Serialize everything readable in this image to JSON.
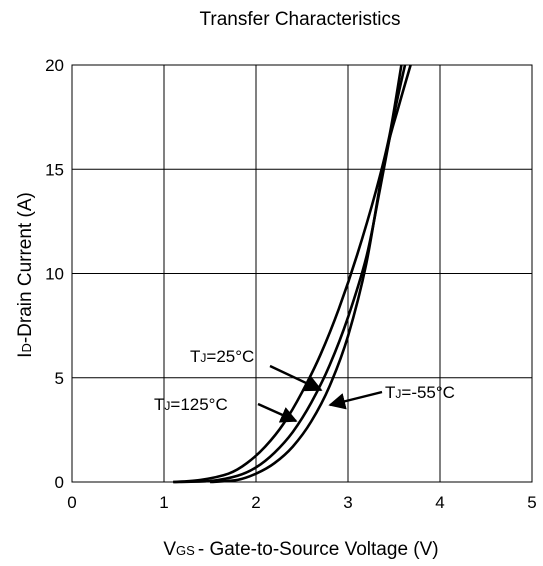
{
  "chart_data": {
    "type": "line",
    "title": "Transfer Characteristics",
    "xlabel": {
      "main": "V",
      "sub": "GS",
      "rest": "- Gate-to-Source Voltage (V)"
    },
    "ylabel": {
      "main": "I",
      "sub": "D",
      "rest": "-Drain Current (A)"
    },
    "xlim": [
      0,
      5
    ],
    "ylim": [
      0,
      20
    ],
    "xticks": [
      "0",
      "1",
      "2",
      "3",
      "4",
      "5"
    ],
    "yticks": [
      "0",
      "5",
      "10",
      "15",
      "20"
    ],
    "grid": true,
    "series": [
      {
        "name": "T_J=25°C",
        "label": {
          "main": "T",
          "sub": "J",
          "rest": "=25°C"
        },
        "x": [
          1.1,
          1.5,
          1.8,
          2.0,
          2.2,
          2.4,
          2.6,
          2.8,
          3.0,
          3.2,
          3.35,
          3.5,
          3.62
        ],
        "y": [
          0.0,
          0.05,
          0.3,
          0.7,
          1.4,
          2.4,
          3.8,
          5.6,
          7.9,
          10.8,
          14.1,
          17.6,
          20.0
        ]
      },
      {
        "name": "T_J=125°C",
        "label": {
          "main": "T",
          "sub": "J",
          "rest": "=125°C"
        },
        "x": [
          1.1,
          1.4,
          1.7,
          1.9,
          2.1,
          2.3,
          2.5,
          2.7,
          2.9,
          3.1,
          3.3,
          3.45,
          3.58
        ],
        "y": [
          0.0,
          0.1,
          0.4,
          0.9,
          1.7,
          2.8,
          4.3,
          6.1,
          8.3,
          10.9,
          13.9,
          16.6,
          20.0
        ]
      },
      {
        "name": "T_J=-55°C",
        "label": {
          "main": "T",
          "sub": "J",
          "rest": "=-55°C"
        },
        "x": [
          1.5,
          1.8,
          2.0,
          2.2,
          2.4,
          2.6,
          2.8,
          3.0,
          3.2,
          3.4,
          3.55,
          3.68
        ],
        "y": [
          0.0,
          0.1,
          0.4,
          0.9,
          1.7,
          2.9,
          4.6,
          7.0,
          10.5,
          15.5,
          18.0,
          20.0
        ]
      }
    ]
  }
}
